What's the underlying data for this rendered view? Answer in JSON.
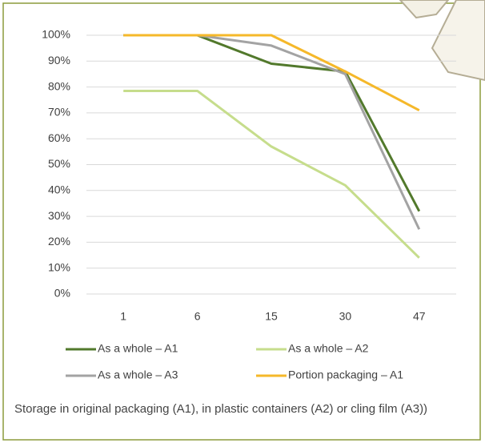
{
  "chart_data": {
    "type": "line",
    "categories": [
      "1",
      "6",
      "15",
      "30",
      "47"
    ],
    "series": [
      {
        "name": "As a whole – A1",
        "color": "#52792c",
        "values": [
          100,
          100,
          89,
          86,
          32
        ]
      },
      {
        "name": "As a whole – A2",
        "color": "#c6dd8c",
        "values": [
          78.5,
          78.5,
          57,
          42,
          14
        ]
      },
      {
        "name": "As a whole – A3",
        "color": "#a3a3a3",
        "values": [
          100,
          100,
          96,
          85,
          25
        ]
      },
      {
        "name": "Portion packaging – A1",
        "color": "#f5b82a",
        "values": [
          100,
          100,
          100,
          86,
          71
        ]
      }
    ],
    "ylim": [
      0,
      100
    ],
    "yticks": [
      {
        "value": 0,
        "label": "0%"
      },
      {
        "value": 10,
        "label": "10%"
      },
      {
        "value": 20,
        "label": "20%"
      },
      {
        "value": 30,
        "label": "30%"
      },
      {
        "value": 40,
        "label": "40%"
      },
      {
        "value": 50,
        "label": "50%"
      },
      {
        "value": 60,
        "label": "60%"
      },
      {
        "value": 70,
        "label": "70%"
      },
      {
        "value": 80,
        "label": "80%"
      },
      {
        "value": 90,
        "label": "90%"
      },
      {
        "value": 100,
        "label": "100%"
      }
    ],
    "grid": true,
    "caption": "Storage in original packaging (A1), in plastic containers (A2) or cling film (A3))"
  }
}
